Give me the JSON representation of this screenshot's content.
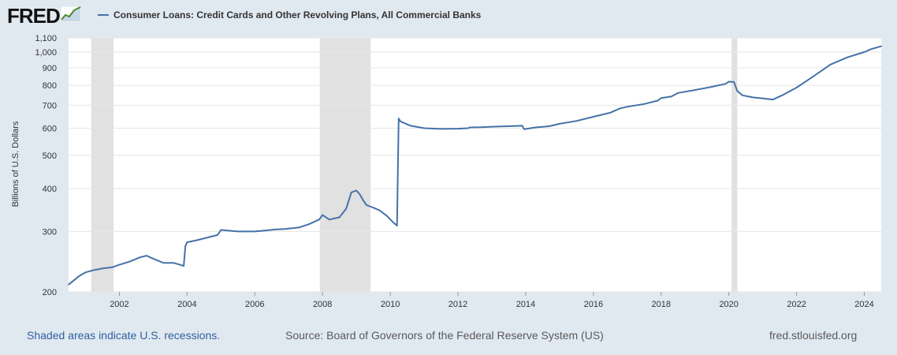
{
  "header": {
    "logo_text": "FRED",
    "logo_icon": "chart-line-icon",
    "legend_label": "Consumer Loans: Credit Cards and Other Revolving Plans, All Commercial Banks"
  },
  "footer": {
    "recession_note": "Shaded areas indicate U.S. recessions.",
    "source": "Source: Board of Governors of the Federal Reserve System (US)",
    "site": "fred.stlouisfed.org"
  },
  "colors": {
    "series": "#4572a7",
    "background": "#e1e9f0",
    "plot": "#ffffff",
    "recession": "#e1e1e1",
    "footer_link": "#2f5f9e"
  },
  "chart_data": {
    "type": "line",
    "title": "Consumer Loans: Credit Cards and Other Revolving Plans, All Commercial Banks",
    "xlabel": "",
    "ylabel": "Billions of U.S. Dollars",
    "y_scale": "log",
    "ylim": [
      200,
      1100
    ],
    "xlim": [
      2000.5,
      2024.5
    ],
    "y_ticks": [
      200,
      300,
      400,
      500,
      600,
      700,
      800,
      900,
      1000,
      1100
    ],
    "y_tick_labels": [
      "200",
      "300",
      "400",
      "500",
      "600",
      "700",
      "800",
      "900",
      "1,000",
      "1,100"
    ],
    "x_ticks": [
      2002,
      2004,
      2006,
      2008,
      2010,
      2012,
      2014,
      2016,
      2018,
      2020,
      2022,
      2024
    ],
    "x_tick_labels": [
      "2002",
      "2004",
      "2006",
      "2008",
      "2010",
      "2012",
      "2014",
      "2016",
      "2018",
      "2020",
      "2022",
      "2024"
    ],
    "grid": true,
    "legend": "top-left",
    "recessions": [
      [
        2001.17,
        2001.83
      ],
      [
        2007.92,
        2009.42
      ],
      [
        2020.08,
        2020.25
      ]
    ],
    "series": [
      {
        "name": "Consumer Loans: Credit Cards and Other Revolving Plans, All Commercial Banks",
        "x": [
          2000.5,
          2000.8,
          2001.0,
          2001.2,
          2001.5,
          2001.8,
          2002.0,
          2002.3,
          2002.6,
          2002.8,
          2003.0,
          2003.3,
          2003.6,
          2003.9,
          2003.95,
          2004.0,
          2004.3,
          2004.6,
          2004.9,
          2005.0,
          2005.2,
          2005.5,
          2005.8,
          2006.0,
          2006.3,
          2006.6,
          2006.9,
          2007.0,
          2007.3,
          2007.6,
          2007.9,
          2008.0,
          2008.2,
          2008.5,
          2008.7,
          2008.85,
          2009.0,
          2009.1,
          2009.2,
          2009.3,
          2009.5,
          2009.7,
          2009.9,
          2010.1,
          2010.2,
          2010.25,
          2010.3,
          2010.6,
          2011.0,
          2011.5,
          2012.0,
          2012.3,
          2012.35,
          2012.7,
          2013.0,
          2013.5,
          2013.9,
          2013.95,
          2014.3,
          2014.7,
          2015.0,
          2015.5,
          2016.0,
          2016.5,
          2016.8,
          2017.0,
          2017.5,
          2017.9,
          2018.0,
          2018.3,
          2018.5,
          2019.0,
          2019.5,
          2019.9,
          2020.0,
          2020.15,
          2020.25,
          2020.4,
          2020.7,
          2021.0,
          2021.3,
          2021.6,
          2022.0,
          2022.5,
          2023.0,
          2023.5,
          2024.0,
          2024.2,
          2024.5
        ],
        "values": [
          210,
          222,
          228,
          231,
          234,
          236,
          240,
          245,
          252,
          255,
          250,
          243,
          243,
          238,
          272,
          279,
          283,
          288,
          293,
          303,
          302,
          300,
          300,
          300,
          302,
          304,
          305,
          306,
          308,
          315,
          325,
          335,
          325,
          330,
          350,
          390,
          395,
          385,
          370,
          358,
          352,
          345,
          333,
          318,
          312,
          640,
          628,
          610,
          600,
          597,
          598,
          600,
          603,
          604,
          606,
          608,
          610,
          596,
          603,
          608,
          618,
          630,
          648,
          666,
          686,
          693,
          706,
          722,
          735,
          742,
          760,
          775,
          792,
          808,
          820,
          818,
          770,
          748,
          738,
          733,
          727,
          750,
          788,
          850,
          920,
          965,
          1000,
          1020,
          1040
        ]
      }
    ]
  }
}
